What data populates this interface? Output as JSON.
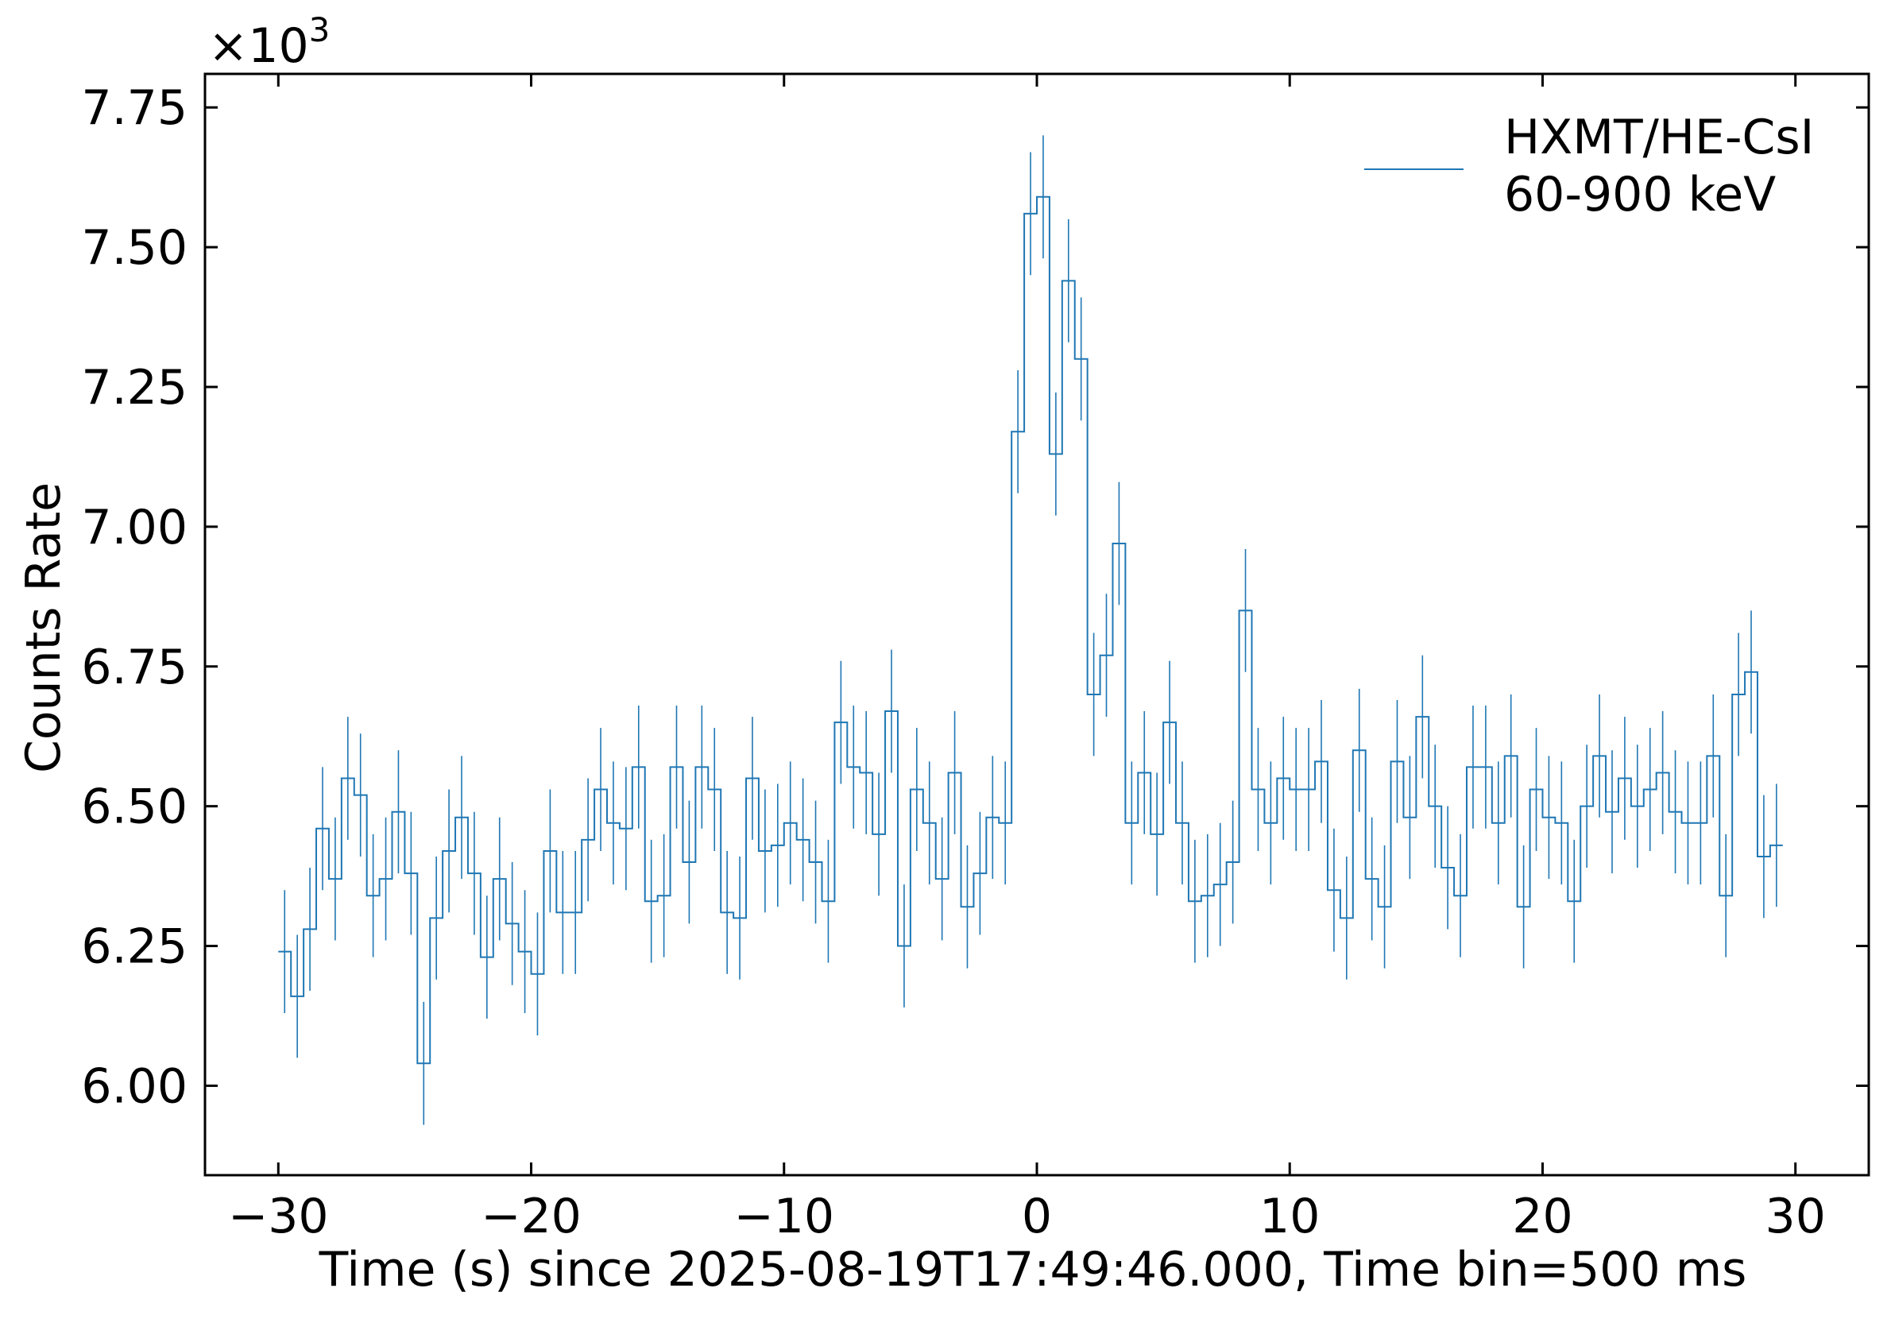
{
  "chart_data": {
    "type": "line",
    "step": true,
    "error_bars": true,
    "xlabel": "Time (s) since 2025-08-19T17:49:46.000, Time bin=500 ms",
    "ylabel": "Counts Rate",
    "y_multiplier_label": "×10",
    "y_multiplier_exponent": "3",
    "xlim": [
      -32.9,
      32.9
    ],
    "ylim": [
      5.84,
      7.81
    ],
    "x_ticks": [
      -30,
      -20,
      -10,
      0,
      10,
      20,
      30
    ],
    "x_tick_labels": [
      "−30",
      "−20",
      "−10",
      "0",
      "10",
      "20",
      "30"
    ],
    "y_ticks": [
      6.0,
      6.25,
      6.5,
      6.75,
      7.0,
      7.25,
      7.5,
      7.75
    ],
    "y_tick_labels": [
      "6.00",
      "6.25",
      "6.50",
      "6.75",
      "7.00",
      "7.25",
      "7.50",
      "7.75"
    ],
    "legend": {
      "position": "upper-right",
      "line1": "HXMT/HE-CsI",
      "line2": "60-900 keV"
    },
    "color": "#1f77b4",
    "bin_width": 0.5,
    "x_start": -29.75,
    "error": 0.11,
    "series": [
      {
        "values": [
          6.24,
          6.16,
          6.28,
          6.46,
          6.37,
          6.55,
          6.52,
          6.34,
          6.37,
          6.49,
          6.38,
          6.04,
          6.3,
          6.42,
          6.48,
          6.38,
          6.23,
          6.37,
          6.29,
          6.24,
          6.2,
          6.42,
          6.31,
          6.31,
          6.44,
          6.53,
          6.47,
          6.46,
          6.57,
          6.33,
          6.34,
          6.57,
          6.4,
          6.57,
          6.53,
          6.31,
          6.3,
          6.55,
          6.42,
          6.43,
          6.47,
          6.44,
          6.4,
          6.33,
          6.65,
          6.57,
          6.56,
          6.45,
          6.67,
          6.25,
          6.53,
          6.47,
          6.37,
          6.56,
          6.32,
          6.38,
          6.48,
          6.47,
          7.17,
          7.56,
          7.59,
          7.13,
          7.44,
          7.3,
          6.7,
          6.77,
          6.97,
          6.47,
          6.56,
          6.45,
          6.65,
          6.47,
          6.33,
          6.34,
          6.36,
          6.4,
          6.85,
          6.53,
          6.47,
          6.55,
          6.53,
          6.53,
          6.58,
          6.35,
          6.3,
          6.6,
          6.37,
          6.32,
          6.58,
          6.48,
          6.66,
          6.5,
          6.39,
          6.34,
          6.57,
          6.57,
          6.47,
          6.59,
          6.32,
          6.53,
          6.48,
          6.47,
          6.33,
          6.5,
          6.59,
          6.49,
          6.55,
          6.5,
          6.53,
          6.56,
          6.49,
          6.47,
          6.47,
          6.59,
          6.34,
          6.7,
          6.74,
          6.41,
          6.43
        ]
      }
    ]
  }
}
